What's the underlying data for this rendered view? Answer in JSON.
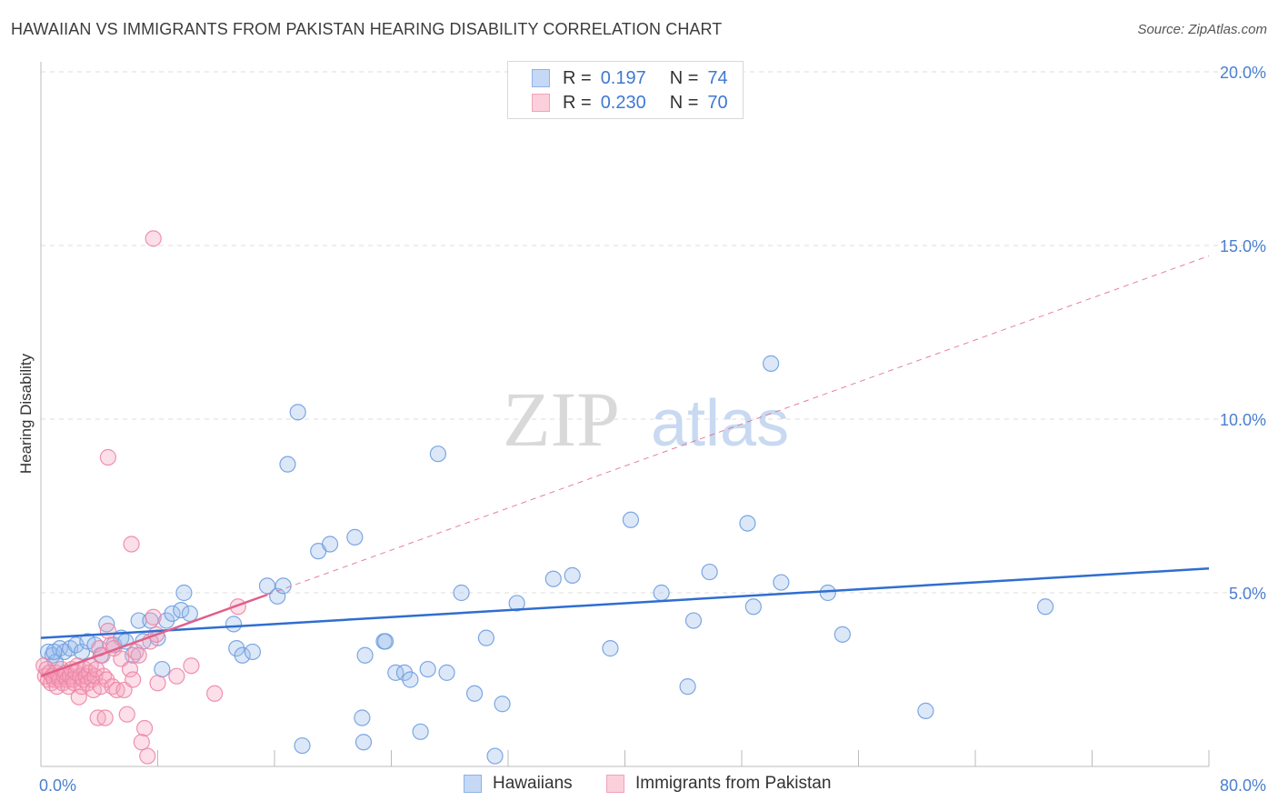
{
  "title": "HAWAIIAN VS IMMIGRANTS FROM PAKISTAN HEARING DISABILITY CORRELATION CHART",
  "source": "Source: ZipAtlas.com",
  "watermark": {
    "zip": "ZIP",
    "atlas": "atlas"
  },
  "legend": {
    "series1": {
      "r_label": "R =",
      "r_value": "0.197",
      "n_label": "N =",
      "n_value": "74"
    },
    "series2": {
      "r_label": "R =",
      "r_value": "0.230",
      "n_label": "N =",
      "n_value": "70"
    }
  },
  "colors": {
    "blue": "#9bbcec",
    "blue_line": "#2f6ed0",
    "pink": "#f5a3bd",
    "pink_line": "#e0608a",
    "tick": "#4a7fd0",
    "grid": "#dddddd"
  },
  "chart_data": {
    "type": "scatter",
    "title": "HAWAIIAN VS IMMIGRANTS FROM PAKISTAN HEARING DISABILITY CORRELATION CHART",
    "xlabel": "",
    "ylabel": "Hearing Disability",
    "xlim": [
      0,
      80
    ],
    "ylim": [
      0,
      20
    ],
    "x_ticks": [
      0,
      80
    ],
    "x_tick_labels": [
      "0.0%",
      "80.0%"
    ],
    "y_ticks": [
      5,
      10,
      15,
      20
    ],
    "y_tick_labels": [
      "5.0%",
      "10.0%",
      "15.0%",
      "20.0%"
    ],
    "series": [
      {
        "name": "Hawaiians",
        "r": 0.197,
        "n": 74,
        "trend": {
          "x": [
            0,
            80
          ],
          "y": [
            3.7,
            5.7
          ],
          "style": "solid"
        },
        "points": [
          [
            0.5,
            3.3
          ],
          [
            0.8,
            3.2
          ],
          [
            1.0,
            3.0
          ],
          [
            1.3,
            3.4
          ],
          [
            1.6,
            3.3
          ],
          [
            2.0,
            3.4
          ],
          [
            2.4,
            3.5
          ],
          [
            2.8,
            3.3
          ],
          [
            3.2,
            3.6
          ],
          [
            3.7,
            3.5
          ],
          [
            4.1,
            3.2
          ],
          [
            4.5,
            4.1
          ],
          [
            5.0,
            3.5
          ],
          [
            5.5,
            3.7
          ],
          [
            5.8,
            3.6
          ],
          [
            6.3,
            3.2
          ],
          [
            6.7,
            4.2
          ],
          [
            7.0,
            3.6
          ],
          [
            7.5,
            4.2
          ],
          [
            8.0,
            3.7
          ],
          [
            8.3,
            2.8
          ],
          [
            8.6,
            4.2
          ],
          [
            9.0,
            4.4
          ],
          [
            9.6,
            4.5
          ],
          [
            9.8,
            5.0
          ],
          [
            10.2,
            4.4
          ],
          [
            13.2,
            4.1
          ],
          [
            13.4,
            3.4
          ],
          [
            13.8,
            3.2
          ],
          [
            14.5,
            3.3
          ],
          [
            15.5,
            5.2
          ],
          [
            16.2,
            4.9
          ],
          [
            16.6,
            5.2
          ],
          [
            16.9,
            8.7
          ],
          [
            17.6,
            10.2
          ],
          [
            17.9,
            0.6
          ],
          [
            19.0,
            6.2
          ],
          [
            19.8,
            6.4
          ],
          [
            21.5,
            6.6
          ],
          [
            22.2,
            3.2
          ],
          [
            22.0,
            1.4
          ],
          [
            22.1,
            0.7
          ],
          [
            23.5,
            3.6
          ],
          [
            23.6,
            3.6
          ],
          [
            24.3,
            2.7
          ],
          [
            24.9,
            2.7
          ],
          [
            25.3,
            2.5
          ],
          [
            26.0,
            1.0
          ],
          [
            26.5,
            2.8
          ],
          [
            27.2,
            9.0
          ],
          [
            27.8,
            2.7
          ],
          [
            28.8,
            5.0
          ],
          [
            29.7,
            2.1
          ],
          [
            30.5,
            3.7
          ],
          [
            31.1,
            0.3
          ],
          [
            31.6,
            1.8
          ],
          [
            32.6,
            4.7
          ],
          [
            35.1,
            5.4
          ],
          [
            36.4,
            5.5
          ],
          [
            39.0,
            3.4
          ],
          [
            40.4,
            7.1
          ],
          [
            42.5,
            5.0
          ],
          [
            44.3,
            2.3
          ],
          [
            44.7,
            4.2
          ],
          [
            45.8,
            5.6
          ],
          [
            48.4,
            7.0
          ],
          [
            48.8,
            4.6
          ],
          [
            50.0,
            11.6
          ],
          [
            50.7,
            5.3
          ],
          [
            53.9,
            5.0
          ],
          [
            54.9,
            3.8
          ],
          [
            60.6,
            1.6
          ],
          [
            68.8,
            4.6
          ],
          [
            0.9,
            3.3
          ]
        ]
      },
      {
        "name": "Immigrants from Pakistan",
        "r": 0.23,
        "n": 70,
        "trend": {
          "x": [
            0,
            80
          ],
          "y": [
            2.6,
            14.7
          ],
          "solid_until_x": 15.5
        },
        "points": [
          [
            0.2,
            2.9
          ],
          [
            0.3,
            2.6
          ],
          [
            0.4,
            2.8
          ],
          [
            0.5,
            2.5
          ],
          [
            0.6,
            2.7
          ],
          [
            0.7,
            2.4
          ],
          [
            0.8,
            2.6
          ],
          [
            0.9,
            2.5
          ],
          [
            1.0,
            2.7
          ],
          [
            1.1,
            2.3
          ],
          [
            1.2,
            2.6
          ],
          [
            1.3,
            2.5
          ],
          [
            1.4,
            2.8
          ],
          [
            1.5,
            2.4
          ],
          [
            1.6,
            2.6
          ],
          [
            1.7,
            2.7
          ],
          [
            1.8,
            2.5
          ],
          [
            1.9,
            2.3
          ],
          [
            2.0,
            2.6
          ],
          [
            2.1,
            2.8
          ],
          [
            2.2,
            2.5
          ],
          [
            2.3,
            2.4
          ],
          [
            2.4,
            2.7
          ],
          [
            2.5,
            2.9
          ],
          [
            2.6,
            2.0
          ],
          [
            2.7,
            2.6
          ],
          [
            2.8,
            2.3
          ],
          [
            2.9,
            2.5
          ],
          [
            3.0,
            2.8
          ],
          [
            3.1,
            2.6
          ],
          [
            3.2,
            2.4
          ],
          [
            3.3,
            2.7
          ],
          [
            3.4,
            2.9
          ],
          [
            3.5,
            2.5
          ],
          [
            3.6,
            2.2
          ],
          [
            3.7,
            2.6
          ],
          [
            3.8,
            2.8
          ],
          [
            3.9,
            1.4
          ],
          [
            4.0,
            3.4
          ],
          [
            4.1,
            2.3
          ],
          [
            4.2,
            3.2
          ],
          [
            4.3,
            2.6
          ],
          [
            4.4,
            1.4
          ],
          [
            4.5,
            2.5
          ],
          [
            4.6,
            3.9
          ],
          [
            4.8,
            3.5
          ],
          [
            4.9,
            2.3
          ],
          [
            5.0,
            3.4
          ],
          [
            5.2,
            2.2
          ],
          [
            5.5,
            3.1
          ],
          [
            5.7,
            2.2
          ],
          [
            5.9,
            1.5
          ],
          [
            6.1,
            2.8
          ],
          [
            6.3,
            2.5
          ],
          [
            6.5,
            3.3
          ],
          [
            6.7,
            3.2
          ],
          [
            6.9,
            0.7
          ],
          [
            7.1,
            1.1
          ],
          [
            7.3,
            0.3
          ],
          [
            7.5,
            3.6
          ],
          [
            7.7,
            4.3
          ],
          [
            7.9,
            3.8
          ],
          [
            8.0,
            2.4
          ],
          [
            4.6,
            8.9
          ],
          [
            6.2,
            6.4
          ],
          [
            7.7,
            15.2
          ],
          [
            9.3,
            2.6
          ],
          [
            10.3,
            2.9
          ],
          [
            11.9,
            2.1
          ],
          [
            13.5,
            4.6
          ]
        ]
      }
    ]
  },
  "bottom_legend": {
    "s1": "Hawaiians",
    "s2": "Immigrants from Pakistan"
  }
}
